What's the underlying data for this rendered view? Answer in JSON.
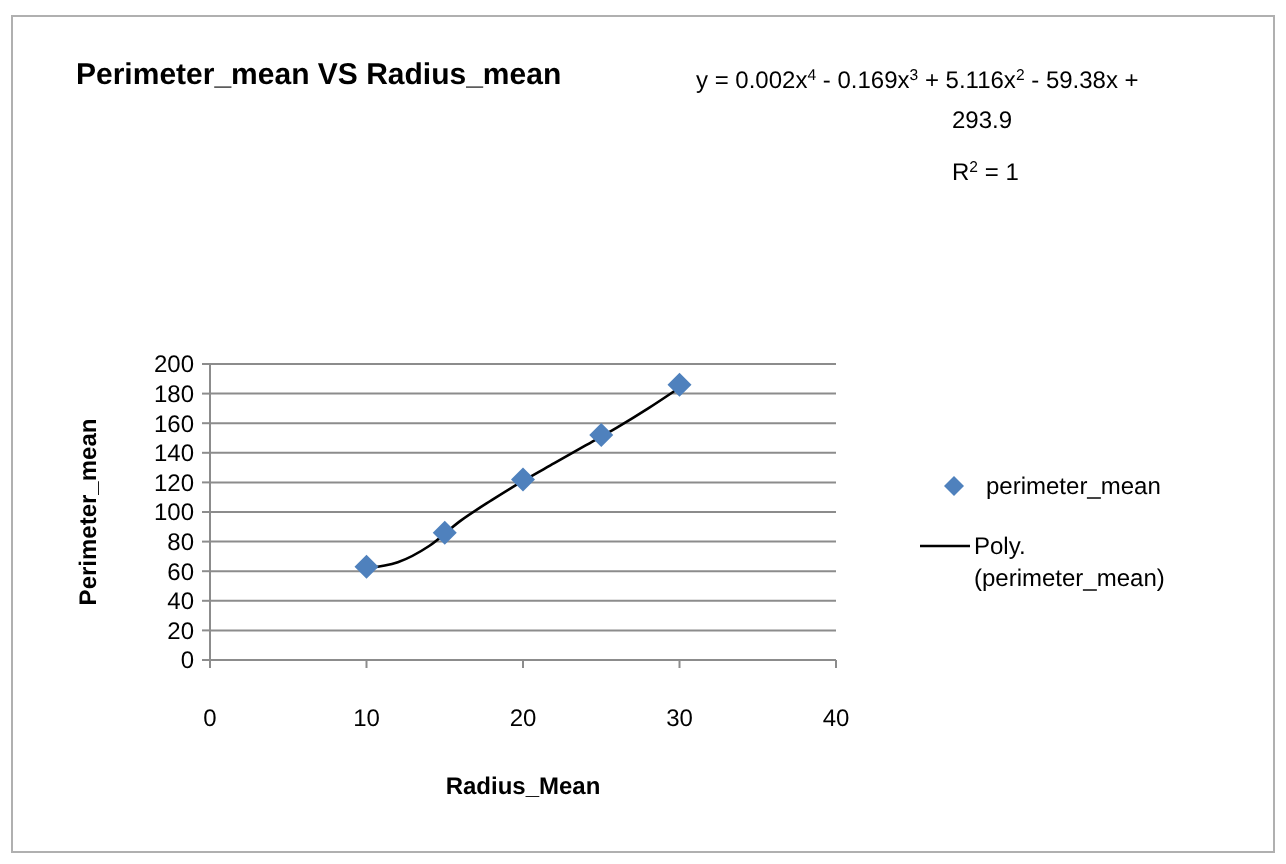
{
  "chart_data": {
    "type": "scatter",
    "title": "Perimeter_mean VS Radius_mean",
    "xlabel": "Radius_Mean",
    "ylabel": "Perimeter_mean",
    "annotations": [
      "y = 0.002x$^{4}$ - 0.169x$^{3}$ + 5.116x$^{2}$ - 59.38x + 293.9",
      "R$^{2}$ = 1"
    ],
    "xlim": [
      0,
      40
    ],
    "xticks": [
      0,
      10,
      20,
      30,
      40
    ],
    "ylim": [
      0,
      200
    ],
    "yticks": [
      0,
      20,
      40,
      60,
      80,
      100,
      120,
      140,
      160,
      180,
      200
    ],
    "grid": "y",
    "legend": "right",
    "marker": "diamond",
    "series": [
      {
        "name": "perimeter_mean",
        "color": "#4f81bd",
        "x": [
          10,
          15,
          20,
          25,
          30
        ],
        "values": [
          63,
          86,
          122,
          152,
          186
        ]
      },
      {
        "name": "Poly. (perimeter_mean)",
        "type": "line",
        "color": "#000000",
        "line_style": "solid",
        "marker": "none",
        "x": [
          10,
          12,
          14,
          16,
          18,
          20,
          22,
          24,
          26,
          28,
          30
        ],
        "values": [
          62,
          66,
          77,
          94,
          108,
          121,
          133,
          145,
          157,
          170,
          184
        ]
      }
    ]
  }
}
